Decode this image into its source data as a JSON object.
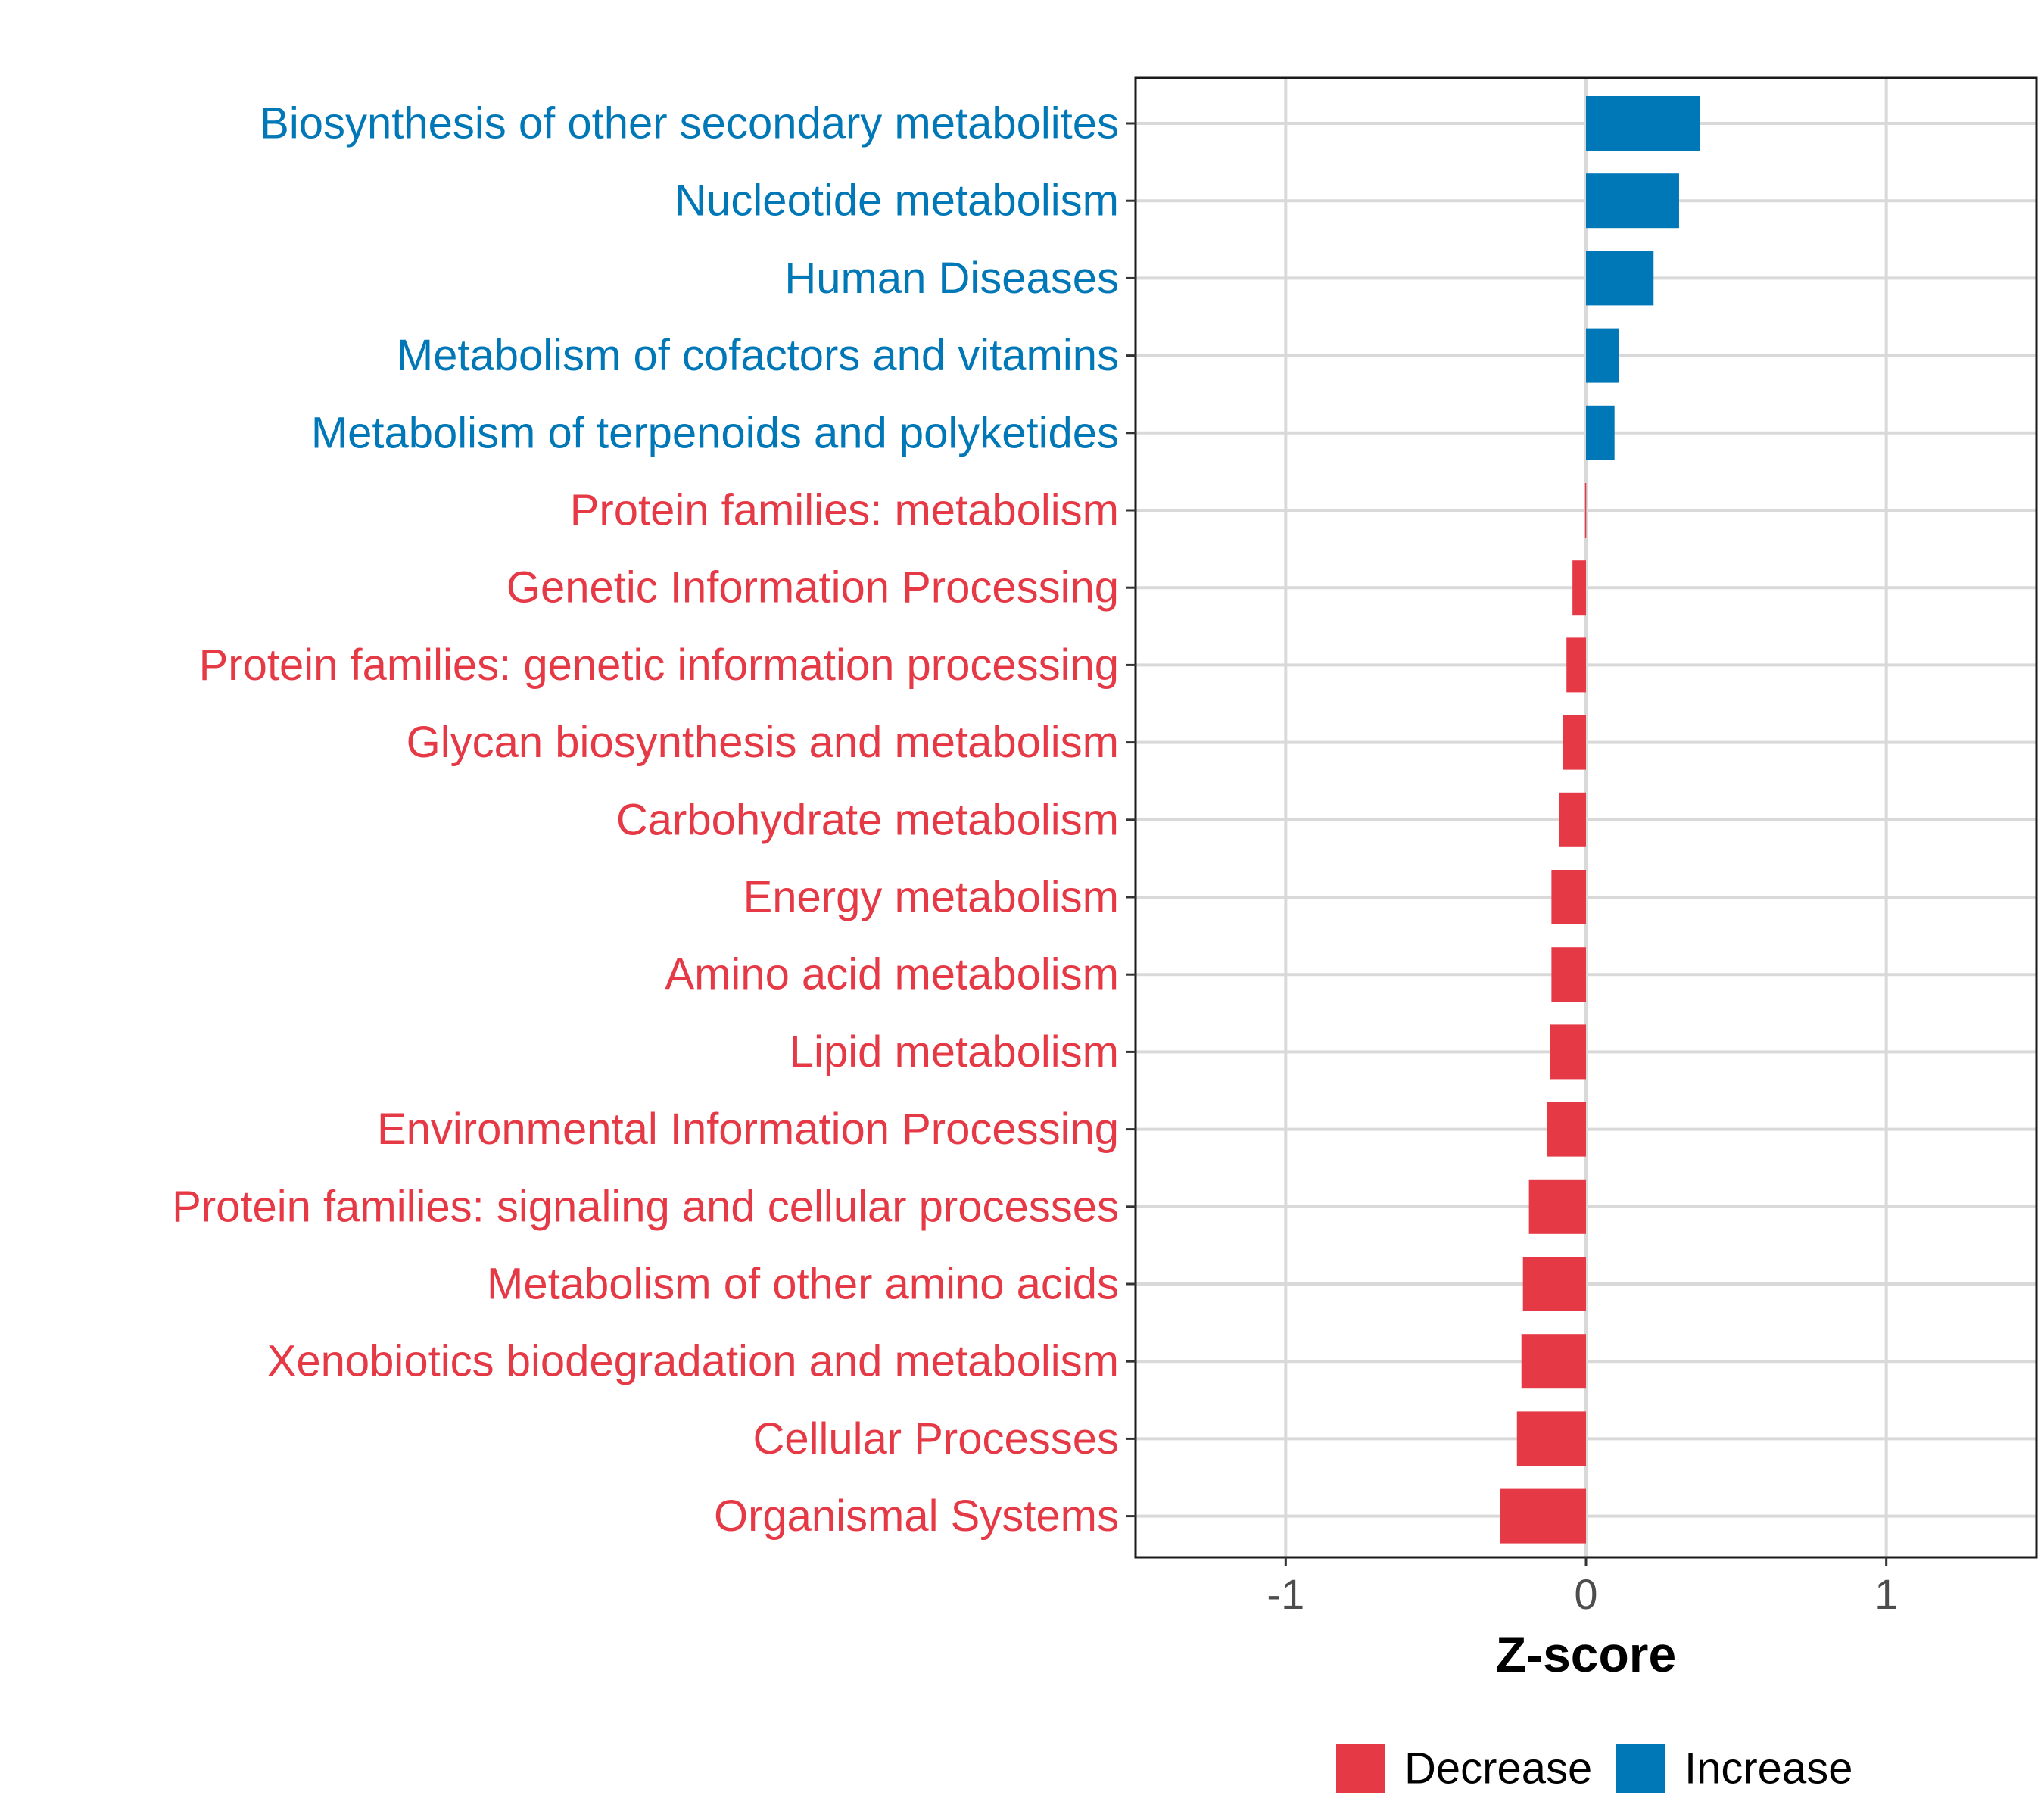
{
  "chart_data": {
    "type": "bar",
    "orientation": "horizontal",
    "categories": [
      "Biosynthesis of other secondary metabolites",
      "Nucleotide metabolism",
      "Human Diseases",
      "Metabolism of cofactors and vitamins",
      "Metabolism of terpenoids and polyketides",
      "Protein families: metabolism",
      "Genetic Information Processing",
      "Protein families: genetic information processing",
      "Glycan biosynthesis and metabolism",
      "Carbohydrate metabolism",
      "Energy metabolism",
      "Amino acid metabolism",
      "Lipid metabolism",
      "Environmental Information Processing",
      "Protein families: signaling and cellular processes",
      "Metabolism of other amino acids",
      "Xenobiotics biodegradation and metabolism",
      "Cellular Processes",
      "Organismal Systems"
    ],
    "values": [
      0.38,
      0.31,
      0.225,
      0.11,
      0.095,
      -0.003,
      -0.045,
      -0.065,
      -0.078,
      -0.09,
      -0.115,
      -0.115,
      -0.12,
      -0.13,
      -0.19,
      -0.21,
      -0.215,
      -0.23,
      -0.285
    ],
    "groups": [
      "Increase",
      "Increase",
      "Increase",
      "Increase",
      "Increase",
      "Decrease",
      "Decrease",
      "Decrease",
      "Decrease",
      "Decrease",
      "Decrease",
      "Decrease",
      "Decrease",
      "Decrease",
      "Decrease",
      "Decrease",
      "Decrease",
      "Decrease",
      "Decrease"
    ],
    "xlabel": "Z-score",
    "ylabel": "",
    "xlim": [
      -1.5,
      1.5
    ],
    "xticks": [
      -1,
      0,
      1
    ],
    "xtick_labels": [
      "-1",
      "0",
      "1"
    ],
    "grid": true,
    "legend": {
      "placement": "bottom",
      "entries": [
        {
          "label": "Decrease",
          "color": "#E63946"
        },
        {
          "label": "Increase",
          "color": "#0077B6"
        }
      ]
    },
    "colors": {
      "Decrease": "#E63946",
      "Increase": "#0077B6"
    }
  }
}
